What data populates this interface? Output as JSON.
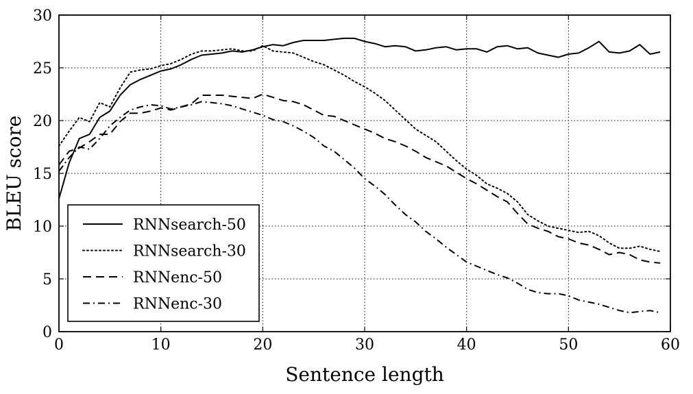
{
  "chart_data": {
    "type": "line",
    "xlabel": "Sentence length",
    "ylabel": "BLEU score",
    "xlim": [
      0,
      60
    ],
    "ylim": [
      0,
      30
    ],
    "xticks": [
      "0",
      "10",
      "20",
      "30",
      "40",
      "50",
      "60"
    ],
    "yticks": [
      "0",
      "5",
      "10",
      "15",
      "20",
      "25",
      "30"
    ],
    "grid": true,
    "legend_position": "lower-left",
    "series": [
      {
        "name": "RNNsearch-50",
        "style": "solid",
        "x": [
          0,
          1,
          2,
          3,
          4,
          5,
          6,
          7,
          8,
          9,
          10,
          11,
          12,
          13,
          14,
          15,
          16,
          17,
          18,
          19,
          20,
          21,
          22,
          23,
          24,
          25,
          26,
          27,
          28,
          29,
          30,
          31,
          32,
          33,
          34,
          35,
          36,
          37,
          38,
          39,
          40,
          41,
          42,
          43,
          44,
          45,
          46,
          47,
          48,
          49,
          50,
          51,
          52,
          53,
          54,
          55,
          56,
          57,
          58,
          59
        ],
        "y": [
          12.6,
          16.0,
          18.3,
          18.7,
          20.3,
          20.9,
          22.4,
          23.4,
          23.9,
          24.3,
          24.7,
          24.9,
          25.3,
          25.8,
          26.2,
          26.3,
          26.4,
          26.6,
          26.5,
          26.7,
          27.0,
          27.2,
          27.1,
          27.4,
          27.6,
          27.6,
          27.6,
          27.7,
          27.8,
          27.8,
          27.5,
          27.3,
          27.0,
          27.1,
          27.0,
          26.6,
          26.7,
          26.9,
          27.0,
          26.7,
          26.8,
          26.8,
          26.5,
          27.0,
          27.1,
          26.8,
          26.9,
          26.4,
          26.2,
          26.0,
          26.3,
          26.4,
          26.9,
          27.5,
          26.5,
          26.4,
          26.6,
          27.2,
          26.3,
          26.5
        ]
      },
      {
        "name": "RNNsearch-30",
        "style": "dotted",
        "x": [
          0,
          1,
          2,
          3,
          4,
          5,
          6,
          7,
          8,
          9,
          10,
          11,
          12,
          13,
          14,
          15,
          16,
          17,
          18,
          19,
          20,
          21,
          22,
          23,
          24,
          25,
          26,
          27,
          28,
          29,
          30,
          31,
          32,
          33,
          34,
          35,
          36,
          37,
          38,
          39,
          40,
          41,
          42,
          43,
          44,
          45,
          46,
          47,
          48,
          49,
          50,
          51,
          52,
          53,
          54,
          55,
          56,
          57,
          58,
          59
        ],
        "y": [
          17.6,
          19.0,
          20.3,
          19.9,
          21.7,
          21.3,
          23.1,
          24.6,
          24.8,
          24.9,
          25.2,
          25.4,
          25.8,
          26.3,
          26.6,
          26.6,
          26.7,
          26.8,
          26.6,
          26.6,
          27.1,
          26.6,
          26.5,
          26.4,
          26.0,
          25.6,
          25.3,
          24.8,
          24.3,
          23.7,
          23.2,
          22.6,
          21.9,
          21.0,
          20.1,
          19.2,
          18.6,
          18.0,
          17.1,
          16.2,
          15.4,
          14.8,
          14.0,
          13.6,
          13.1,
          12.3,
          11.1,
          10.5,
          10.0,
          9.8,
          9.6,
          9.4,
          9.5,
          9.1,
          8.4,
          7.9,
          7.9,
          8.1,
          7.8,
          7.6
        ]
      },
      {
        "name": "RNNenc-50",
        "style": "dashed",
        "x": [
          0,
          1,
          2,
          3,
          4,
          5,
          6,
          7,
          8,
          9,
          10,
          11,
          12,
          13,
          14,
          15,
          16,
          17,
          18,
          19,
          20,
          21,
          22,
          23,
          24,
          25,
          26,
          27,
          28,
          29,
          30,
          31,
          32,
          33,
          34,
          35,
          36,
          37,
          38,
          39,
          40,
          41,
          42,
          43,
          44,
          45,
          46,
          47,
          48,
          49,
          50,
          51,
          52,
          53,
          54,
          55,
          56,
          57,
          58,
          59
        ],
        "y": [
          15.8,
          17.1,
          17.4,
          18.0,
          18.7,
          18.7,
          19.9,
          20.7,
          20.7,
          20.9,
          21.2,
          21.0,
          21.3,
          21.6,
          22.4,
          22.4,
          22.4,
          22.3,
          22.2,
          22.1,
          22.5,
          22.2,
          21.9,
          21.8,
          21.5,
          21.0,
          20.5,
          20.4,
          20.0,
          19.6,
          19.2,
          18.8,
          18.3,
          18.0,
          17.6,
          17.1,
          16.5,
          16.1,
          15.7,
          15.1,
          14.5,
          14.0,
          13.4,
          12.8,
          12.3,
          11.2,
          10.2,
          9.8,
          9.5,
          9.0,
          8.8,
          8.4,
          8.2,
          7.8,
          7.3,
          7.5,
          7.3,
          6.8,
          6.6,
          6.5
        ]
      },
      {
        "name": "RNNenc-30",
        "style": "dashdot",
        "x": [
          0,
          1,
          2,
          3,
          4,
          5,
          6,
          7,
          8,
          9,
          10,
          11,
          12,
          13,
          14,
          15,
          16,
          17,
          18,
          19,
          20,
          21,
          22,
          23,
          24,
          25,
          26,
          27,
          28,
          29,
          30,
          31,
          32,
          33,
          34,
          35,
          36,
          37,
          38,
          39,
          40,
          41,
          42,
          43,
          44,
          45,
          46,
          47,
          48,
          49,
          50,
          51,
          52,
          53,
          54,
          55,
          56,
          57,
          58,
          59
        ],
        "y": [
          15.2,
          16.5,
          17.5,
          17.3,
          18.3,
          19.5,
          20.3,
          21.0,
          21.3,
          21.5,
          21.4,
          21.1,
          21.3,
          21.5,
          21.8,
          21.7,
          21.6,
          21.4,
          21.1,
          20.8,
          20.5,
          20.1,
          19.9,
          19.5,
          19.0,
          18.4,
          17.6,
          17.1,
          16.3,
          15.5,
          14.5,
          13.8,
          13.0,
          12.0,
          11.1,
          10.4,
          9.5,
          8.8,
          8.0,
          7.3,
          6.6,
          6.2,
          5.8,
          5.4,
          5.1,
          4.6,
          4.0,
          3.7,
          3.6,
          3.6,
          3.4,
          3.0,
          2.8,
          2.6,
          2.3,
          2.0,
          1.8,
          1.9,
          2.0,
          1.8
        ]
      }
    ]
  }
}
